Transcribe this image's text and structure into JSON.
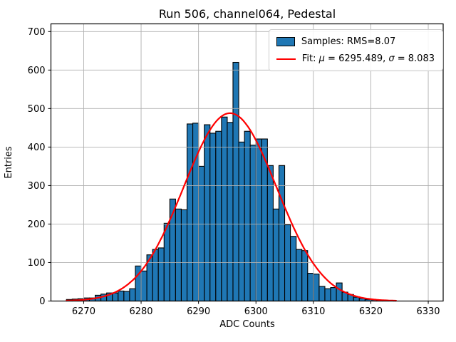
{
  "chart_data": {
    "type": "bar",
    "subtype": "histogram",
    "title": "Run 506, channel064, Pedestal",
    "xlabel": "ADC Counts",
    "ylabel": "Entries",
    "xlim": [
      6264.3,
      6332.6
    ],
    "ylim": [
      0,
      720
    ],
    "xticks": [
      6270,
      6280,
      6290,
      6300,
      6310,
      6320,
      6330
    ],
    "yticks": [
      0,
      100,
      200,
      300,
      400,
      500,
      600,
      700
    ],
    "grid": true,
    "grid_color": "#b0b0b0",
    "background_color": "#ffffff",
    "axes_color": "#000000",
    "bin_start": 6267,
    "bin_width": 1,
    "values": [
      4,
      5,
      6,
      8,
      8,
      15,
      18,
      21,
      21,
      26,
      25,
      32,
      91,
      78,
      120,
      134,
      138,
      202,
      265,
      239,
      237,
      460,
      462,
      350,
      458,
      436,
      441,
      478,
      464,
      620,
      413,
      441,
      405,
      421,
      421,
      352,
      239,
      352,
      198,
      168,
      134,
      131,
      72,
      70,
      38,
      32,
      35,
      47,
      23,
      17,
      10,
      7,
      4,
      3,
      2,
      2,
      1
    ],
    "bar_color": "#1f77b4",
    "bar_edge_color": "#000000",
    "samples_rms": 8.07,
    "fit": {
      "type": "gaussian",
      "mu": 6295.489,
      "sigma": 8.083,
      "amplitude": 488,
      "color": "#ff0000",
      "x_range": [
        6267,
        6324.4
      ]
    },
    "legend": {
      "position": "upper right",
      "items": [
        {
          "swatch": "patch",
          "color": "#1f77b4",
          "label": "Samples: RMS=8.07"
        },
        {
          "swatch": "line",
          "color": "#ff0000",
          "label": "Fit: μ = 6295.489, σ = 8.083",
          "parts": [
            "Fit: ",
            "μ",
            " = 6295.489, ",
            "σ",
            " = 8.083"
          ]
        }
      ]
    }
  }
}
